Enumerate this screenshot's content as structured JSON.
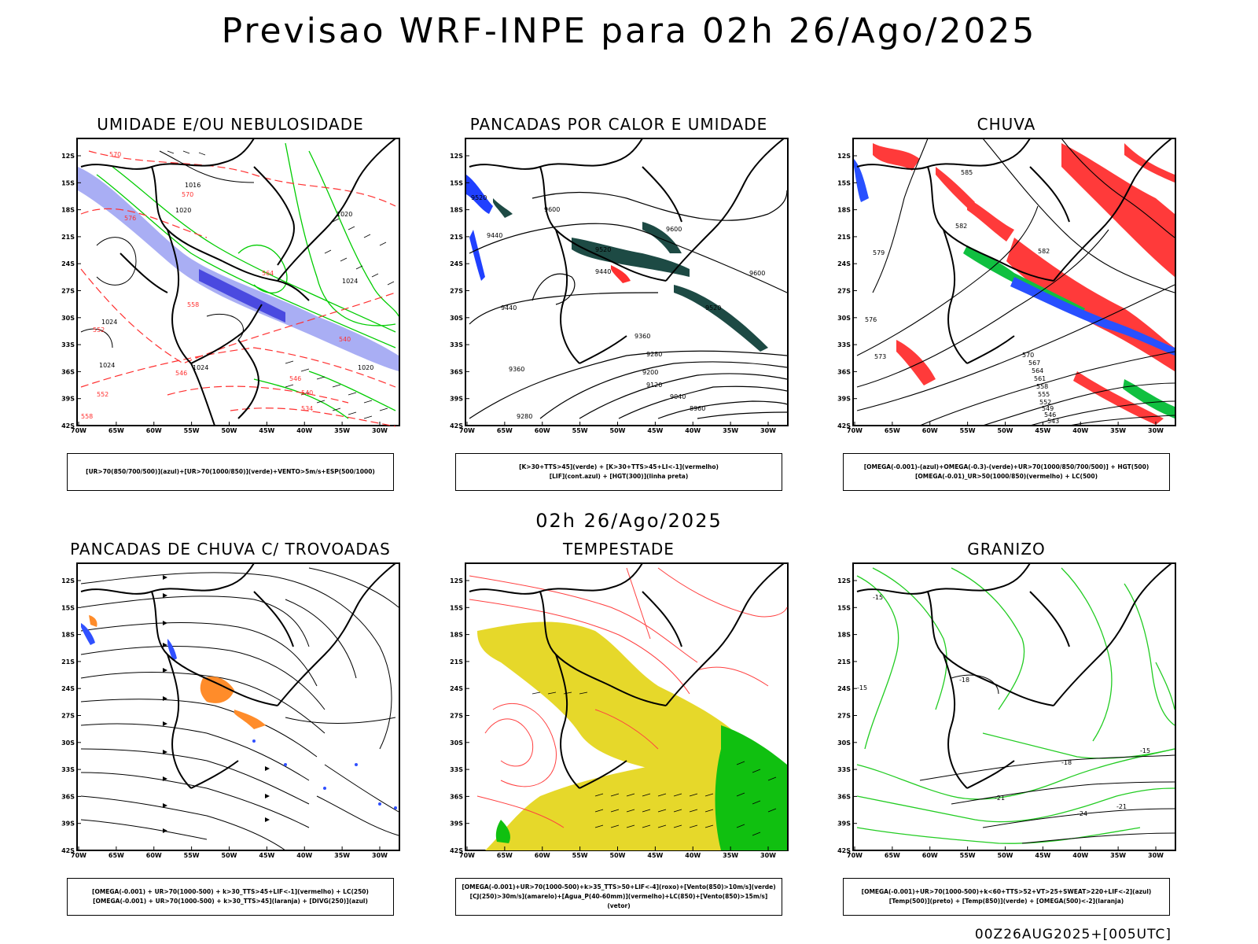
{
  "main_title": "Previsao WRF-INPE  para 02h 26/Ago/2025",
  "mid_label": "02h 26/Ago/2025",
  "footer": "00Z26AUG2025+[005UTC]",
  "axes": {
    "lat_labels": [
      "12S",
      "15S",
      "18S",
      "21S",
      "24S",
      "27S",
      "30S",
      "33S",
      "36S",
      "39S",
      "42S"
    ],
    "lon_labels": [
      "70W",
      "65W",
      "60W",
      "55W",
      "50W",
      "45W",
      "40W",
      "35W",
      "30W"
    ]
  },
  "panels": [
    {
      "title": "UMIDADE E/OU NEBULOSIDADE",
      "legend": [
        "[UR>70(850/700/500)](azul)+[UR>70(1000/850)](verde)+VENTO>5m/s+ESP(500/1000)"
      ],
      "contour_labels": [
        "1020",
        "1020",
        "1024",
        "1024",
        "1024",
        "1016",
        "1024",
        "1020"
      ],
      "red_labels": [
        "570",
        "570",
        "576",
        "564",
        "558",
        "552",
        "546",
        "540",
        "534",
        "540",
        "546",
        "552",
        "558"
      ],
      "fill_colors": {
        "blue": "#9ea4f4",
        "dark_blue": "#4040d8",
        "green": "#00cc00",
        "red": "#ff3030"
      }
    },
    {
      "title": "PANCADAS POR CALOR E UMIDADE",
      "legend": [
        "[K>30+TTS>45](verde) + [K>30+TTS>45+LI<-1](vermelho)",
        "[LIF](cont.azul) + [HGT(300)](linha preta)"
      ],
      "contour_labels": [
        "9520",
        "9600",
        "9440",
        "9600",
        "9520",
        "9440",
        "9600",
        "9440",
        "9520",
        "9360",
        "9280",
        "9200",
        "9120",
        "9040",
        "8960",
        "9360",
        "9280"
      ],
      "fill_colors": {
        "dark_green": "#1d4a44",
        "red": "#ff3030",
        "blue": "#2040ff"
      }
    },
    {
      "title": "CHUVA",
      "legend": [
        "[OMEGA(-0.001)-(azul)+OMEGA(-0.3)-(verde)+UR>70(1000/850/700/500)] + HGT(500)",
        "[OMEGA(-0.01)_UR>50(1000/850)(vermelho) + LC(500)"
      ],
      "contour_labels": [
        "585",
        "582",
        "582",
        "579",
        "576",
        "573",
        "570",
        "567",
        "564",
        "561",
        "558",
        "555",
        "552",
        "549",
        "546",
        "543"
      ],
      "fill_colors": {
        "red": "#ff3a3a",
        "green": "#10c040",
        "blue": "#2850ff"
      }
    },
    {
      "title": "PANCADAS DE CHUVA C/ TROVOADAS",
      "legend": [
        "[OMEGA(-0.001) + UR>70(1000-500) + k>30_TTS>45+LIF<-1](vermelho) + LC(250)",
        "[OMEGA(-0.001) + UR>70(1000-500) + k>30_TTS>45](laranja) + [DIVG(250)](azul)"
      ],
      "fill_colors": {
        "orange": "#ff8c2a",
        "blue": "#3050ff"
      }
    },
    {
      "title": "TEMPESTADE",
      "legend": [
        "[OMEGA(-0.001)+UR>70(1000-500)+k>35_TTS>50+LIF<-4](roxo)+[Vento(850)>10m/s](verde)",
        "[CJ(250)>30m/s](amarelo)+[Agua_P(40-60mm)](vermelho)+LC(850)+[Vento(850)>15m/s](vetor)"
      ],
      "fill_colors": {
        "yellow": "#e6d82a",
        "green": "#10c010",
        "red": "#ff4040"
      }
    },
    {
      "title": "GRANIZO",
      "legend": [
        "[OMEGA(-0.001)+UR>70(1000-500)+k<60+TTS>52+VT>25+SWEAT>220+LIF<-2](azul)",
        "[Temp(500)](preto) + [Temp(850)](verde) + [OMEGA(500)<-2](laranja)"
      ],
      "contour_labels": [
        "-15",
        "-18",
        "-15",
        "-15",
        "-18",
        "-21",
        "-24",
        "-21"
      ],
      "fill_colors": {
        "green": "#22cc22"
      }
    }
  ]
}
